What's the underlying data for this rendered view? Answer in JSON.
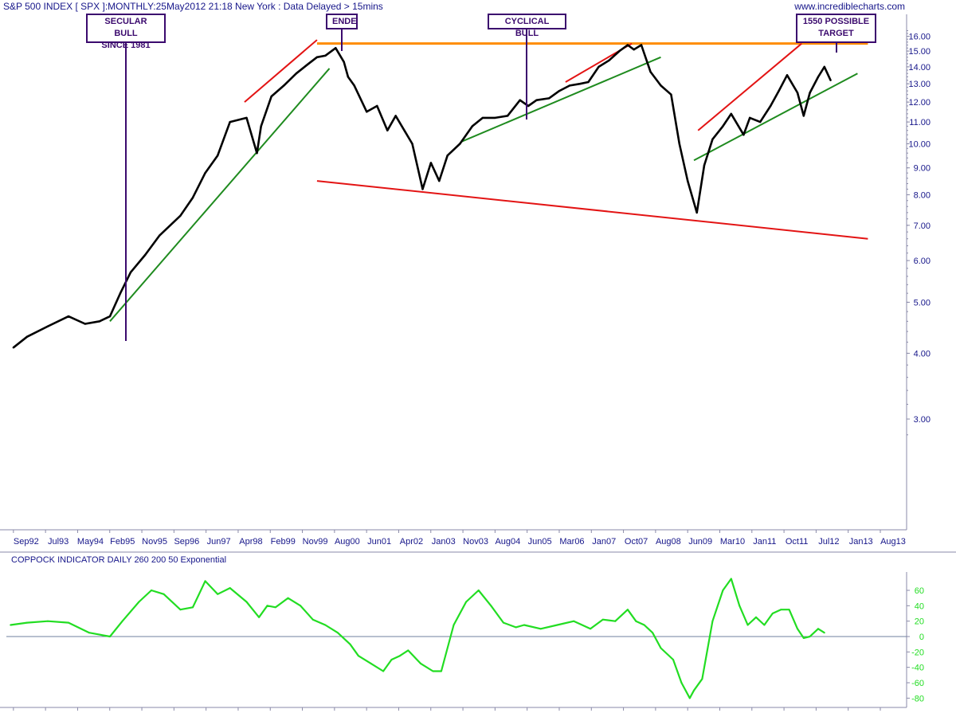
{
  "header": {
    "title": "S&P 500 INDEX [ SPX ]:MONTHLY:25May2012 21:18 New York : Data Delayed > 15mins",
    "site": "www.incrediblecharts.com"
  },
  "annotations": {
    "secular_bull": "SECULAR BULL\nSINCE 1981",
    "ende": "ENDE",
    "cyclical_bull": "CYCLICAL BULL",
    "target": "1550 POSSIBLE\nTARGET"
  },
  "colors": {
    "price": "#000000",
    "coppock": "#22dd22",
    "red_line": "#e31414",
    "green_line": "#1f8b1f",
    "orange_line": "#ff8c00",
    "box_border": "#3b0a6e",
    "axis_text": "#16168a"
  },
  "chart_data": [
    {
      "type": "line",
      "title": "S&P 500 INDEX [ SPX ]:MONTHLY:25May2012 21:18 New York : Data Delayed > 15mins",
      "x_ticks": [
        "Sep92",
        "Jul93",
        "May94",
        "Feb95",
        "Nov95",
        "Sep96",
        "Jun97",
        "Apr98",
        "Feb99",
        "Nov99",
        "Aug00",
        "Jun01",
        "Apr02",
        "Jan03",
        "Nov03",
        "Aug04",
        "Jun05",
        "Mar06",
        "Jan07",
        "Oct07",
        "Aug08",
        "Jun09",
        "Mar10",
        "Jan11",
        "Oct11",
        "Jul12",
        "Jan13",
        "Aug13"
      ],
      "y_ticks": [
        3.0,
        4.0,
        5.0,
        6.0,
        7.0,
        8.0,
        9.0,
        10.0,
        11.0,
        12.0,
        13.0,
        14.0,
        15.0,
        16.0
      ],
      "y_scale": "log",
      "ylim": [
        2.7,
        16.5
      ],
      "xlim": [
        1992.5,
        2013.85
      ],
      "series": [
        {
          "x": [
            1992.67,
            1993.0,
            1993.5,
            1994.0,
            1994.4,
            1994.75,
            1995.0,
            1995.25,
            1995.5,
            1995.85,
            1996.2,
            1996.7,
            1997.0,
            1997.3,
            1997.6,
            1997.9,
            1998.3,
            1998.55,
            1998.65,
            1998.9,
            1999.2,
            1999.5,
            1999.8,
            2000.0,
            2000.2,
            2000.45,
            2000.65,
            2000.75,
            2000.9,
            2001.2,
            2001.45,
            2001.7,
            2001.9,
            2002.3,
            2002.55,
            2002.75,
            2002.95,
            2003.15,
            2003.45,
            2003.75,
            2004.0,
            2004.3,
            2004.6,
            2004.9,
            2005.1,
            2005.3,
            2005.6,
            2005.85,
            2006.1,
            2006.35,
            2006.55,
            2006.8,
            2007.05,
            2007.3,
            2007.5,
            2007.65,
            2007.83,
            2008.05,
            2008.3,
            2008.55,
            2008.75,
            2008.95,
            2009.17,
            2009.35,
            2009.55,
            2009.8,
            2010.0,
            2010.3,
            2010.45,
            2010.7,
            2010.95,
            2011.15,
            2011.35,
            2011.6,
            2011.75,
            2011.9,
            2012.1,
            2012.25,
            2012.4
          ],
          "values": [
            4.1,
            4.3,
            4.5,
            4.7,
            4.55,
            4.6,
            4.7,
            5.2,
            5.7,
            6.15,
            6.7,
            7.3,
            7.9,
            8.8,
            9.5,
            11.0,
            11.2,
            9.6,
            10.8,
            12.3,
            12.9,
            13.6,
            14.2,
            14.6,
            14.7,
            15.2,
            14.3,
            13.4,
            12.9,
            11.5,
            11.8,
            10.6,
            11.3,
            10.0,
            8.2,
            9.2,
            8.5,
            9.5,
            10.0,
            10.8,
            11.2,
            11.2,
            11.3,
            12.1,
            11.8,
            12.1,
            12.2,
            12.6,
            12.9,
            13.0,
            13.1,
            14.0,
            14.4,
            15.0,
            15.4,
            15.1,
            15.4,
            13.7,
            12.9,
            12.4,
            10.0,
            8.5,
            7.4,
            9.1,
            10.2,
            10.8,
            11.4,
            10.4,
            11.2,
            11.0,
            11.8,
            12.6,
            13.5,
            12.5,
            11.3,
            12.5,
            13.4,
            14.0,
            13.2
          ]
        }
      ],
      "trendlines": [
        {
          "kind": "red",
          "x": [
            1998.25,
            2000.0
          ],
          "y": [
            12.0,
            15.75
          ]
        },
        {
          "kind": "green",
          "x": [
            1995.0,
            2000.3
          ],
          "y": [
            4.6,
            13.9
          ]
        },
        {
          "kind": "orange",
          "x": [
            2000.0,
            2013.3
          ],
          "y": [
            15.5,
            15.5
          ]
        },
        {
          "kind": "red",
          "x": [
            2000.0,
            2013.3
          ],
          "y": [
            8.5,
            6.6
          ]
        },
        {
          "kind": "green",
          "x": [
            2003.5,
            2008.3
          ],
          "y": [
            10.1,
            14.6
          ]
        },
        {
          "kind": "red",
          "x": [
            2006.0,
            2007.6
          ],
          "y": [
            13.1,
            15.5
          ]
        },
        {
          "kind": "red",
          "x": [
            2009.2,
            2011.7
          ],
          "y": [
            10.6,
            15.5
          ]
        },
        {
          "kind": "green",
          "x": [
            2009.1,
            2013.05
          ],
          "y": [
            9.3,
            13.6
          ]
        }
      ]
    },
    {
      "type": "line",
      "title": "COPPOCK INDICATOR DAILY 260 200 50 Exponential",
      "y_ticks": [
        -80,
        -60,
        -40,
        -20,
        0,
        20,
        40,
        60
      ],
      "ylim": [
        -88,
        80
      ],
      "xlim": [
        1992.5,
        2013.85
      ],
      "series": [
        {
          "x": [
            1992.6,
            1993.0,
            1993.5,
            1994.0,
            1994.5,
            1995.0,
            1995.3,
            1995.7,
            1996.0,
            1996.3,
            1996.7,
            1997.0,
            1997.3,
            1997.6,
            1997.9,
            1998.3,
            1998.6,
            1998.8,
            1999.0,
            1999.3,
            1999.6,
            1999.9,
            2000.2,
            2000.5,
            2000.8,
            2001.0,
            2001.3,
            2001.6,
            2001.8,
            2002.0,
            2002.2,
            2002.5,
            2002.8,
            2003.0,
            2003.3,
            2003.6,
            2003.9,
            2004.2,
            2004.5,
            2004.8,
            2005.0,
            2005.4,
            2005.8,
            2006.2,
            2006.6,
            2006.9,
            2007.2,
            2007.5,
            2007.7,
            2007.9,
            2008.1,
            2008.3,
            2008.6,
            2008.8,
            2009.0,
            2009.1,
            2009.3,
            2009.55,
            2009.8,
            2010.0,
            2010.2,
            2010.4,
            2010.6,
            2010.8,
            2011.0,
            2011.2,
            2011.4,
            2011.6,
            2011.75,
            2011.9,
            2012.1,
            2012.25
          ],
          "values": [
            15,
            18,
            20,
            18,
            5,
            0,
            20,
            45,
            60,
            55,
            35,
            38,
            72,
            55,
            63,
            45,
            25,
            40,
            38,
            50,
            40,
            22,
            15,
            5,
            -10,
            -25,
            -35,
            -45,
            -30,
            -25,
            -18,
            -35,
            -45,
            -45,
            15,
            45,
            60,
            40,
            18,
            12,
            15,
            10,
            15,
            20,
            10,
            22,
            20,
            35,
            20,
            15,
            5,
            -15,
            -30,
            -60,
            -80,
            -70,
            -55,
            20,
            60,
            75,
            40,
            15,
            25,
            15,
            30,
            35,
            35,
            10,
            -2,
            0,
            10,
            5
          ]
        }
      ]
    }
  ]
}
